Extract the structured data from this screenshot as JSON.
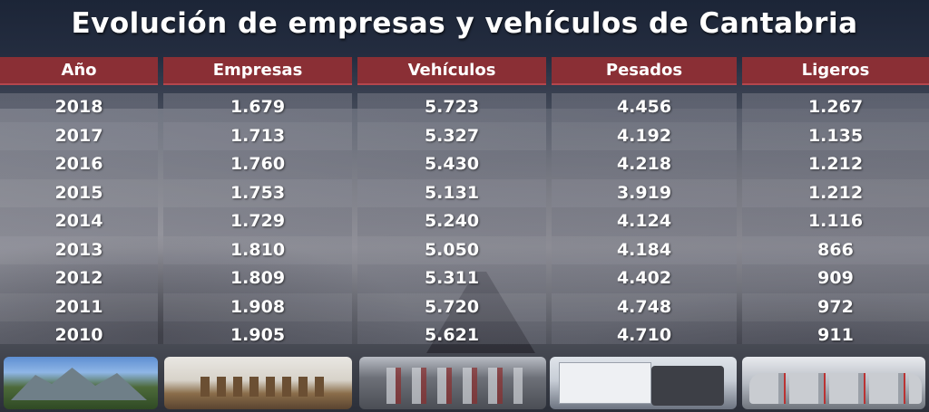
{
  "title": "Evolución de empresas y vehículos de Cantabria",
  "table": {
    "headers": [
      "Año",
      "Empresas",
      "Vehículos",
      "Pesados",
      "Ligeros"
    ],
    "columns": [
      [
        "2018",
        "2017",
        "2016",
        "2015",
        "2014",
        "2013",
        "2012",
        "2011",
        "2010"
      ],
      [
        "1.679",
        "1.713",
        "1.760",
        "1.753",
        "1.729",
        "1.810",
        "1.809",
        "1.908",
        "1.905"
      ],
      [
        "5.723",
        "5.327",
        "5.430",
        "5.131",
        "5.240",
        "5.050",
        "5.311",
        "5.720",
        "5.621"
      ],
      [
        "4.456",
        "4.192",
        "4.218",
        "3.919",
        "4.124",
        "4.184",
        "4.402",
        "4.748",
        "4.710"
      ],
      [
        "1.267",
        "1.135",
        "1.212",
        "1.212",
        "1.116",
        "866",
        "909",
        "972",
        "911"
      ]
    ]
  },
  "photos": [
    "mountain-landscape-photo",
    "office-meeting-room-photo",
    "highway-traffic-photo",
    "truck-photo",
    "parked-cars-photo"
  ],
  "colors": {
    "header_bg": "#8a2f35",
    "title_text": "#ffffff"
  }
}
